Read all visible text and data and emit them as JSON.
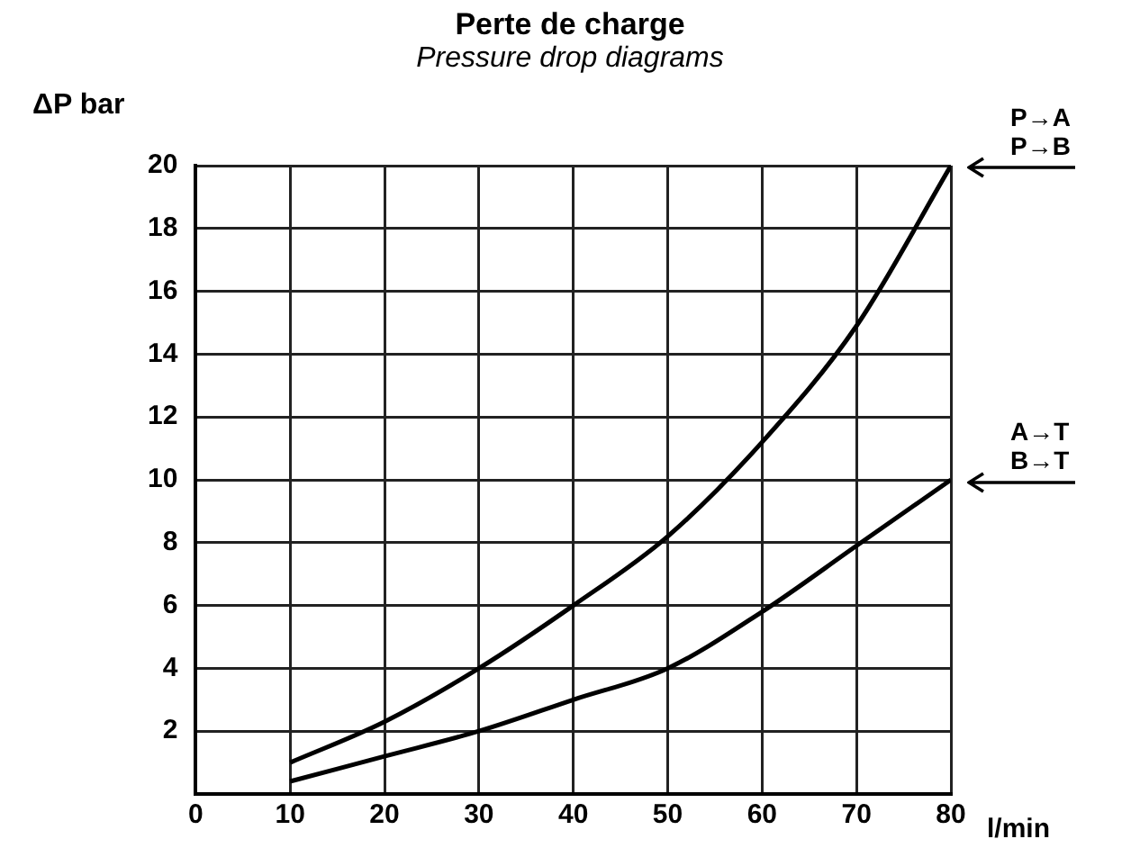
{
  "chart_data": {
    "type": "line",
    "title": "Perte de charge",
    "subtitle": "Pressure drop diagrams",
    "xlabel": "l/min",
    "ylabel": "ΔP bar",
    "x": [
      10,
      20,
      30,
      40,
      50,
      60,
      70,
      80
    ],
    "series": [
      {
        "color": "#000000",
        "values": [
          1.0,
          2.3,
          4.0,
          6.0,
          8.2,
          11.2,
          14.9,
          20
        ]
      },
      {
        "color": "#000000",
        "values": [
          0.4,
          1.2,
          2.0,
          3.0,
          4.0,
          5.8,
          7.9,
          10
        ]
      }
    ],
    "xlim": [
      0,
      80
    ],
    "xticks": [
      0,
      10,
      20,
      30,
      40,
      50,
      60,
      70,
      80
    ],
    "ylim": [
      0,
      20
    ],
    "yticks": [
      2,
      4,
      6,
      8,
      10,
      12,
      14,
      16,
      18,
      20
    ],
    "grid": true,
    "legend": false,
    "marker": "none",
    "line_style": "solid",
    "annotations": [
      {
        "text": "P→A\nP→B",
        "x": 80,
        "y": 20
      },
      {
        "text": "A→T\nB→T",
        "x": 80,
        "y": 10
      }
    ]
  }
}
